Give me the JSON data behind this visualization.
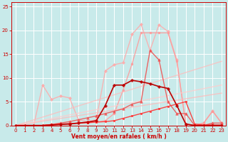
{
  "bg_color": "#c8eaea",
  "grid_color": "#ffffff",
  "xlabel": "Vent moyen/en rafales ( km/h )",
  "xlabel_color": "#cc0000",
  "tick_color": "#cc0000",
  "xlim": [
    -0.5,
    23.5
  ],
  "ylim": [
    0,
    26
  ],
  "xticks": [
    0,
    1,
    2,
    3,
    4,
    5,
    6,
    7,
    8,
    9,
    10,
    11,
    12,
    13,
    14,
    15,
    16,
    17,
    18,
    19,
    20,
    21,
    22,
    23
  ],
  "yticks": [
    0,
    5,
    10,
    15,
    20,
    25
  ],
  "series": [
    {
      "x": [
        0,
        1,
        2,
        3,
        4,
        5,
        6,
        7,
        8,
        9,
        10,
        11,
        12,
        13,
        14,
        15,
        16,
        17,
        18,
        19,
        20,
        21,
        22,
        23
      ],
      "y": [
        0,
        0,
        0,
        8.5,
        5.5,
        6.2,
        5.8,
        1.2,
        0.8,
        1.2,
        11.5,
        12.8,
        13.2,
        19.2,
        21.3,
        15.8,
        21.2,
        19.8,
        13.8,
        0.3,
        0.0,
        0.5,
        3.1,
        0.5
      ],
      "color": "#ffaaaa",
      "alpha": 0.85,
      "lw": 1.0,
      "marker": "D",
      "ms": 2.0
    },
    {
      "x": [
        0,
        1,
        2,
        3,
        4,
        5,
        6,
        7,
        8,
        9,
        10,
        11,
        12,
        13,
        14,
        15,
        16,
        17,
        18,
        19,
        20,
        21,
        22,
        23
      ],
      "y": [
        0,
        0,
        0,
        0,
        0.1,
        0.2,
        0.3,
        0.4,
        0.5,
        0.7,
        1.0,
        2.5,
        7.5,
        13.0,
        19.5,
        19.5,
        19.5,
        19.5,
        13.5,
        0.3,
        0.0,
        0.5,
        3.0,
        0.5
      ],
      "color": "#ff9999",
      "alpha": 0.85,
      "lw": 1.0,
      "marker": "o",
      "ms": 2.0
    },
    {
      "x": [
        0,
        23
      ],
      "y": [
        0,
        6.8
      ],
      "color": "#ffbbbb",
      "alpha": 0.8,
      "lw": 1.0,
      "marker": null,
      "ms": 0
    },
    {
      "x": [
        0,
        23
      ],
      "y": [
        0,
        8.5
      ],
      "color": "#ffcccc",
      "alpha": 0.8,
      "lw": 1.0,
      "marker": null,
      "ms": 0
    },
    {
      "x": [
        0,
        23
      ],
      "y": [
        0,
        13.5
      ],
      "color": "#ffbbbb",
      "alpha": 0.75,
      "lw": 1.0,
      "marker": null,
      "ms": 0
    },
    {
      "x": [
        0,
        1,
        2,
        3,
        4,
        5,
        6,
        7,
        8,
        9,
        10,
        11,
        12,
        13,
        14,
        15,
        16,
        17,
        18,
        19,
        20,
        21,
        22,
        23
      ],
      "y": [
        0,
        0,
        0,
        0,
        0.2,
        0.5,
        0.8,
        1.2,
        1.6,
        2.0,
        2.5,
        3.0,
        3.5,
        4.5,
        5.0,
        15.8,
        13.8,
        5.0,
        2.5,
        2.5,
        0.0,
        0.0,
        0.5,
        0.5
      ],
      "color": "#ee5555",
      "alpha": 0.9,
      "lw": 1.0,
      "marker": "^",
      "ms": 2.5
    },
    {
      "x": [
        0,
        1,
        2,
        3,
        4,
        5,
        6,
        7,
        8,
        9,
        10,
        11,
        12,
        13,
        14,
        15,
        16,
        17,
        18,
        19,
        20,
        21,
        22,
        23
      ],
      "y": [
        0,
        0,
        0,
        0,
        0.2,
        0.3,
        0.4,
        0.5,
        0.6,
        0.7,
        0.8,
        1.0,
        1.5,
        2.0,
        2.5,
        3.0,
        3.5,
        4.0,
        4.5,
        5.0,
        0.3,
        0.1,
        0.1,
        0.1
      ],
      "color": "#ff3333",
      "alpha": 0.9,
      "lw": 1.0,
      "marker": "s",
      "ms": 2.0
    },
    {
      "x": [
        0,
        1,
        2,
        3,
        4,
        5,
        6,
        7,
        8,
        9,
        10,
        11,
        12,
        13,
        14,
        15,
        16,
        17,
        18,
        19,
        20,
        21,
        22,
        23
      ],
      "y": [
        0,
        0,
        0,
        0,
        0.1,
        0.2,
        0.3,
        0.5,
        0.7,
        1.0,
        4.2,
        8.5,
        8.5,
        9.5,
        9.2,
        8.8,
        8.2,
        7.8,
        4.2,
        0.3,
        0.0,
        0.0,
        0.0,
        0.0
      ],
      "color": "#bb0000",
      "alpha": 1.0,
      "lw": 1.2,
      "marker": "P",
      "ms": 2.5
    }
  ]
}
